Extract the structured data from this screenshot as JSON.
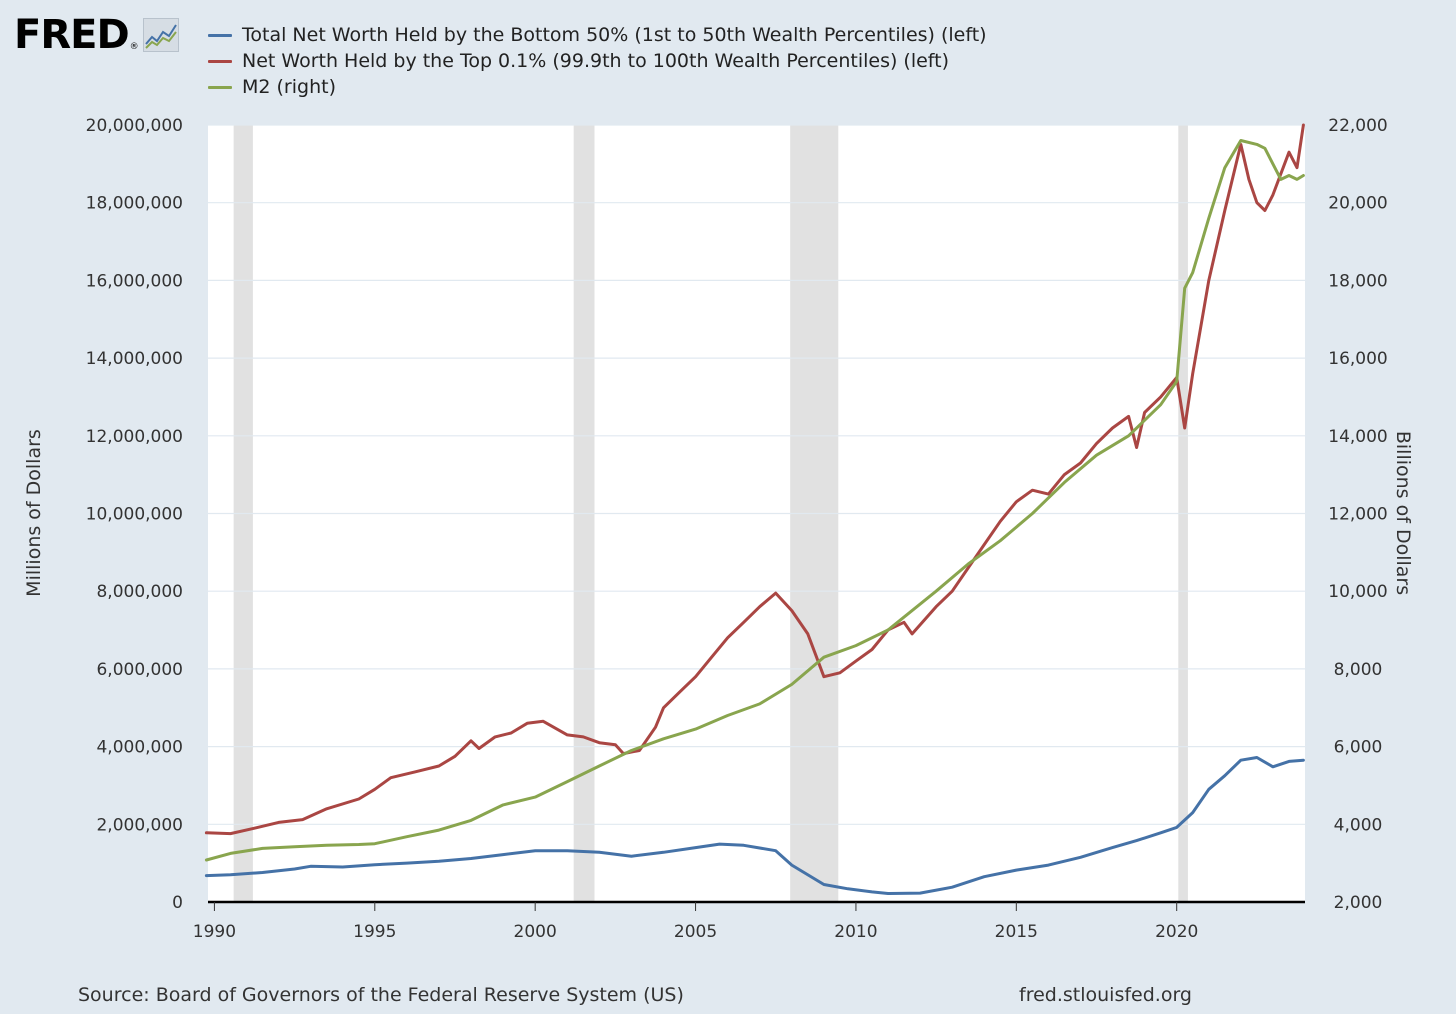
{
  "brand": {
    "name": "FRED",
    "reg": "®",
    "icon": "trend-chart-icon"
  },
  "legend": [
    {
      "label": "Total Net Worth Held by the Bottom 50% (1st to 50th Wealth Percentiles) (left)",
      "color": "#4572a7"
    },
    {
      "label": "Net Worth Held by the Top 0.1% (99.9th to 100th Wealth Percentiles) (left)",
      "color": "#aa4643"
    },
    {
      "label": "M2 (right)",
      "color": "#89a54e"
    }
  ],
  "footer": {
    "source": "Source: Board of Governors of the Federal Reserve System (US)",
    "site": "fred.stlouisfed.org"
  },
  "chart_data": {
    "type": "line",
    "ylabel_left": "Millions of Dollars",
    "ylabel_right": "Billions of Dollars",
    "xlim": [
      1989.8,
      2024.0
    ],
    "ylim_left": [
      0,
      20000000
    ],
    "ylim_right": [
      2000,
      22000
    ],
    "x_ticks": [
      1990,
      1995,
      2000,
      2005,
      2010,
      2015,
      2020
    ],
    "x_tick_labels": [
      "1990",
      "1995",
      "2000",
      "2005",
      "2010",
      "2015",
      "2020"
    ],
    "y_left_ticks": [
      0,
      2000000,
      4000000,
      6000000,
      8000000,
      10000000,
      12000000,
      14000000,
      16000000,
      18000000,
      20000000
    ],
    "y_left_tick_labels": [
      "0",
      "2,000,000",
      "4,000,000",
      "6,000,000",
      "8,000,000",
      "10,000,000",
      "12,000,000",
      "14,000,000",
      "16,000,000",
      "18,000,000",
      "20,000,000"
    ],
    "y_right_ticks": [
      2000,
      4000,
      6000,
      8000,
      10000,
      12000,
      14000,
      16000,
      18000,
      20000,
      22000
    ],
    "y_right_tick_labels": [
      "2,000",
      "4,000",
      "6,000",
      "8,000",
      "10,000",
      "12,000",
      "14,000",
      "16,000",
      "18,000",
      "20,000",
      "22,000"
    ],
    "grid": true,
    "recessions": [
      [
        1990.6,
        1991.2
      ],
      [
        2001.2,
        2001.85
      ],
      [
        2007.95,
        2009.45
      ],
      [
        2020.05,
        2020.35
      ]
    ],
    "series": [
      {
        "name": "Total Net Worth Held by the Bottom 50% (1st to 50th Wealth Percentiles) (left)",
        "axis": "left",
        "color": "#4572a7",
        "points": [
          [
            1989.75,
            680000
          ],
          [
            1990.5,
            700000
          ],
          [
            1991.5,
            760000
          ],
          [
            1992.5,
            850000
          ],
          [
            1993.0,
            920000
          ],
          [
            1994.0,
            900000
          ],
          [
            1995.0,
            960000
          ],
          [
            1996.0,
            1000000
          ],
          [
            1997.0,
            1050000
          ],
          [
            1998.0,
            1120000
          ],
          [
            1999.0,
            1220000
          ],
          [
            2000.0,
            1320000
          ],
          [
            2001.0,
            1320000
          ],
          [
            2002.0,
            1280000
          ],
          [
            2003.0,
            1180000
          ],
          [
            2004.0,
            1280000
          ],
          [
            2005.0,
            1400000
          ],
          [
            2005.75,
            1490000
          ],
          [
            2006.5,
            1460000
          ],
          [
            2007.5,
            1320000
          ],
          [
            2008.0,
            950000
          ],
          [
            2009.0,
            450000
          ],
          [
            2009.75,
            340000
          ],
          [
            2010.5,
            260000
          ],
          [
            2011.0,
            220000
          ],
          [
            2012.0,
            230000
          ],
          [
            2013.0,
            380000
          ],
          [
            2014.0,
            650000
          ],
          [
            2015.0,
            820000
          ],
          [
            2016.0,
            950000
          ],
          [
            2017.0,
            1150000
          ],
          [
            2018.0,
            1400000
          ],
          [
            2018.75,
            1580000
          ],
          [
            2019.5,
            1780000
          ],
          [
            2020.0,
            1920000
          ],
          [
            2020.5,
            2300000
          ],
          [
            2021.0,
            2900000
          ],
          [
            2021.5,
            3250000
          ],
          [
            2022.0,
            3650000
          ],
          [
            2022.5,
            3720000
          ],
          [
            2023.0,
            3480000
          ],
          [
            2023.5,
            3620000
          ],
          [
            2023.95,
            3650000
          ]
        ]
      },
      {
        "name": "Net Worth Held by the Top 0.1% (99.9th to 100th Wealth Percentiles) (left)",
        "axis": "left",
        "color": "#aa4643",
        "points": [
          [
            1989.75,
            1780000
          ],
          [
            1990.5,
            1760000
          ],
          [
            1991.25,
            1900000
          ],
          [
            1992.0,
            2050000
          ],
          [
            1992.75,
            2120000
          ],
          [
            1993.5,
            2400000
          ],
          [
            1994.5,
            2650000
          ],
          [
            1995.0,
            2900000
          ],
          [
            1995.5,
            3200000
          ],
          [
            1996.25,
            3350000
          ],
          [
            1997.0,
            3500000
          ],
          [
            1997.5,
            3750000
          ],
          [
            1998.0,
            4150000
          ],
          [
            1998.25,
            3950000
          ],
          [
            1998.75,
            4250000
          ],
          [
            1999.25,
            4350000
          ],
          [
            1999.75,
            4600000
          ],
          [
            2000.25,
            4650000
          ],
          [
            2001.0,
            4300000
          ],
          [
            2001.5,
            4250000
          ],
          [
            2002.0,
            4100000
          ],
          [
            2002.5,
            4050000
          ],
          [
            2002.75,
            3820000
          ],
          [
            2003.25,
            3900000
          ],
          [
            2003.75,
            4500000
          ],
          [
            2004.0,
            5000000
          ],
          [
            2004.5,
            5400000
          ],
          [
            2005.0,
            5800000
          ],
          [
            2005.5,
            6300000
          ],
          [
            2006.0,
            6800000
          ],
          [
            2006.5,
            7200000
          ],
          [
            2007.0,
            7600000
          ],
          [
            2007.5,
            7950000
          ],
          [
            2008.0,
            7500000
          ],
          [
            2008.5,
            6900000
          ],
          [
            2009.0,
            5800000
          ],
          [
            2009.5,
            5900000
          ],
          [
            2010.0,
            6200000
          ],
          [
            2010.5,
            6500000
          ],
          [
            2011.0,
            7000000
          ],
          [
            2011.5,
            7200000
          ],
          [
            2011.75,
            6900000
          ],
          [
            2012.5,
            7600000
          ],
          [
            2013.0,
            8000000
          ],
          [
            2013.5,
            8600000
          ],
          [
            2014.0,
            9200000
          ],
          [
            2014.5,
            9800000
          ],
          [
            2015.0,
            10300000
          ],
          [
            2015.5,
            10600000
          ],
          [
            2016.0,
            10500000
          ],
          [
            2016.5,
            11000000
          ],
          [
            2017.0,
            11300000
          ],
          [
            2017.5,
            11800000
          ],
          [
            2018.0,
            12200000
          ],
          [
            2018.5,
            12500000
          ],
          [
            2018.75,
            11700000
          ],
          [
            2019.0,
            12600000
          ],
          [
            2019.5,
            13000000
          ],
          [
            2020.0,
            13500000
          ],
          [
            2020.25,
            12200000
          ],
          [
            2020.5,
            13600000
          ],
          [
            2021.0,
            16000000
          ],
          [
            2021.5,
            17800000
          ],
          [
            2022.0,
            19500000
          ],
          [
            2022.25,
            18600000
          ],
          [
            2022.5,
            18000000
          ],
          [
            2022.75,
            17800000
          ],
          [
            2023.0,
            18200000
          ],
          [
            2023.5,
            19300000
          ],
          [
            2023.75,
            18900000
          ],
          [
            2023.95,
            20000000
          ]
        ]
      },
      {
        "name": "M2 (right)",
        "axis": "right",
        "color": "#89a54e",
        "points": [
          [
            1989.75,
            3080
          ],
          [
            1990.5,
            3250
          ],
          [
            1991.5,
            3380
          ],
          [
            1992.5,
            3420
          ],
          [
            1993.5,
            3460
          ],
          [
            1994.5,
            3480
          ],
          [
            1995.0,
            3500
          ],
          [
            1996.0,
            3680
          ],
          [
            1997.0,
            3850
          ],
          [
            1998.0,
            4100
          ],
          [
            1999.0,
            4500
          ],
          [
            2000.0,
            4700
          ],
          [
            2001.0,
            5100
          ],
          [
            2002.0,
            5500
          ],
          [
            2003.0,
            5900
          ],
          [
            2004.0,
            6200
          ],
          [
            2005.0,
            6450
          ],
          [
            2006.0,
            6800
          ],
          [
            2007.0,
            7100
          ],
          [
            2008.0,
            7600
          ],
          [
            2009.0,
            8300
          ],
          [
            2010.0,
            8600
          ],
          [
            2011.0,
            9000
          ],
          [
            2011.75,
            9500
          ],
          [
            2012.5,
            10000
          ],
          [
            2013.5,
            10700
          ],
          [
            2014.5,
            11300
          ],
          [
            2015.5,
            12000
          ],
          [
            2016.5,
            12800
          ],
          [
            2017.5,
            13500
          ],
          [
            2018.5,
            14000
          ],
          [
            2019.5,
            14800
          ],
          [
            2020.0,
            15400
          ],
          [
            2020.25,
            17800
          ],
          [
            2020.5,
            18200
          ],
          [
            2021.0,
            19600
          ],
          [
            2021.5,
            20900
          ],
          [
            2022.0,
            21600
          ],
          [
            2022.5,
            21500
          ],
          [
            2022.75,
            21400
          ],
          [
            2023.0,
            21000
          ],
          [
            2023.25,
            20600
          ],
          [
            2023.5,
            20700
          ],
          [
            2023.75,
            20600
          ],
          [
            2023.95,
            20700
          ]
        ]
      }
    ]
  }
}
